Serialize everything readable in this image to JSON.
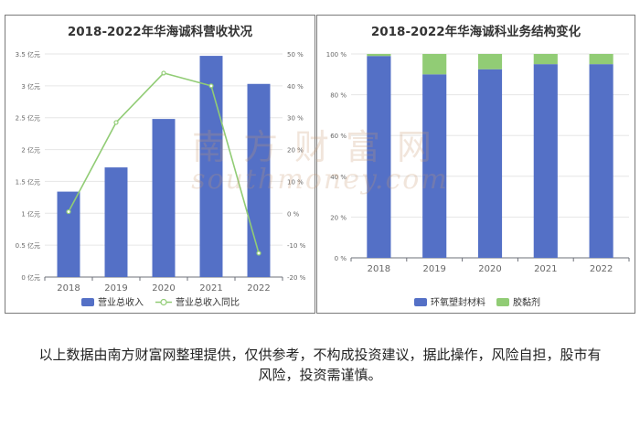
{
  "left_chart": {
    "title": "2018-2022年华海诚科营收状况"
  },
  "right_chart": {
    "title": "2018-2022年华海诚科业务结构变化"
  },
  "watermark": {
    "chinese": "南方财富网",
    "latin": "southmoney.com"
  },
  "footer": {
    "disclaimer": "以上数据由南方财富网整理提供，仅供参考，不构成投资建议，据此操作，风险自担，股市有风险，投资需谨慎。"
  },
  "colors": {
    "revenue_bar": "#5470c6",
    "growth_line": "#91cc75",
    "segment_main": "#5470c6",
    "segment_second": "#91cc75"
  },
  "chart_data": [
    {
      "type": "bar",
      "title": "2018-2022年华海诚科营收状况",
      "categories": [
        "2018",
        "2019",
        "2020",
        "2021",
        "2022"
      ],
      "left_axis": {
        "ticks": [
          "0 亿元",
          "0.5 亿元",
          "1 亿元",
          "1.5 亿元",
          "2 亿元",
          "2.5 亿元",
          "3 亿元",
          "3.5 亿元"
        ],
        "range": [
          0,
          3.5
        ]
      },
      "right_axis": {
        "ticks": [
          "-20 %",
          "-10 %",
          "0 %",
          "10 %",
          "20 %",
          "30 %",
          "40 %",
          "50 %"
        ],
        "range": [
          -20,
          50
        ]
      },
      "series": [
        {
          "name": "营业总收入",
          "kind": "bar",
          "axis": "left",
          "values": [
            1.34,
            1.72,
            2.48,
            3.47,
            3.03
          ]
        },
        {
          "name": "营业总收入同比",
          "kind": "line",
          "axis": "right",
          "values": [
            0.5,
            28.5,
            44,
            40,
            -12.5
          ]
        }
      ],
      "legend_position": "bottom"
    },
    {
      "type": "bar",
      "stacked": true,
      "title": "2018-2022年华海诚科业务结构变化",
      "categories": [
        "2018",
        "2019",
        "2020",
        "2021",
        "2022"
      ],
      "y_axis": {
        "ticks": [
          "0 %",
          "20 %",
          "40 %",
          "60 %",
          "80 %",
          "100 %"
        ],
        "range": [
          0,
          100
        ]
      },
      "series": [
        {
          "name": "环氧塑封材料",
          "values": [
            99,
            90,
            92.5,
            95,
            95
          ]
        },
        {
          "name": "胶黏剂",
          "values": [
            1,
            10,
            7.5,
            5,
            5
          ]
        }
      ],
      "legend_position": "bottom"
    }
  ]
}
